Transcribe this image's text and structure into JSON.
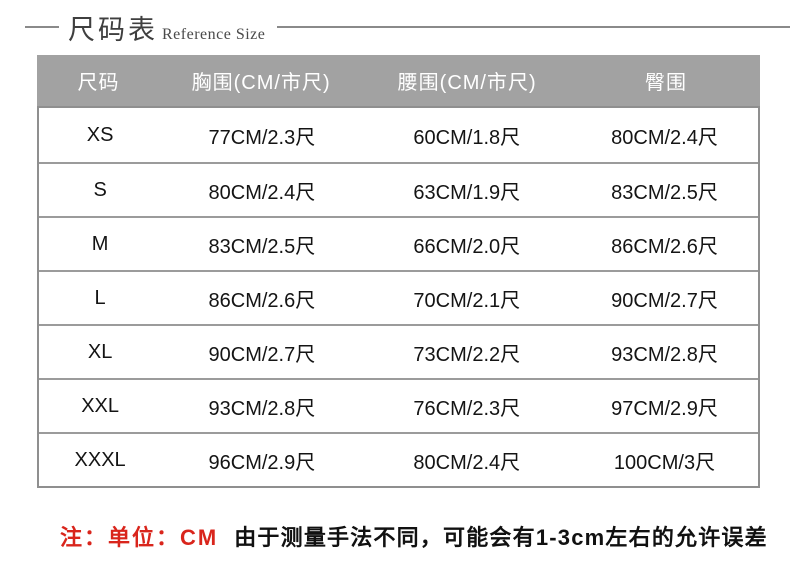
{
  "header": {
    "title_zh": "尺码表",
    "title_en": "Reference Size"
  },
  "table": {
    "headers": [
      "尺码",
      "胸围(CM/市尺)",
      "腰围(CM/市尺)",
      "臀围"
    ],
    "rows": [
      {
        "size": "XS",
        "chest": "77CM/2.3尺",
        "waist": "60CM/1.8尺",
        "hip": "80CM/2.4尺"
      },
      {
        "size": "S",
        "chest": "80CM/2.4尺",
        "waist": "63CM/1.9尺",
        "hip": "83CM/2.5尺"
      },
      {
        "size": "M",
        "chest": "83CM/2.5尺",
        "waist": "66CM/2.0尺",
        "hip": "86CM/2.6尺"
      },
      {
        "size": "L",
        "chest": "86CM/2.6尺",
        "waist": "70CM/2.1尺",
        "hip": "90CM/2.7尺"
      },
      {
        "size": "XL",
        "chest": "90CM/2.7尺",
        "waist": "73CM/2.2尺",
        "hip": "93CM/2.8尺"
      },
      {
        "size": "XXL",
        "chest": "93CM/2.8尺",
        "waist": "76CM/2.3尺",
        "hip": "97CM/2.9尺"
      },
      {
        "size": "XXXL",
        "chest": "96CM/2.9尺",
        "waist": "80CM/2.4尺",
        "hip": "100CM/3尺"
      }
    ]
  },
  "note": {
    "prefix_red": "注：单位：CM",
    "body": "由于测量手法不同，可能会有1-3cm左右的允许误差"
  },
  "colors": {
    "table_header_bg": "#a2a2a2",
    "table_header_text": "#ffffff",
    "table_border": "#8f8f8f",
    "note_red": "#d9251c",
    "title_text": "#3f3f3f"
  }
}
